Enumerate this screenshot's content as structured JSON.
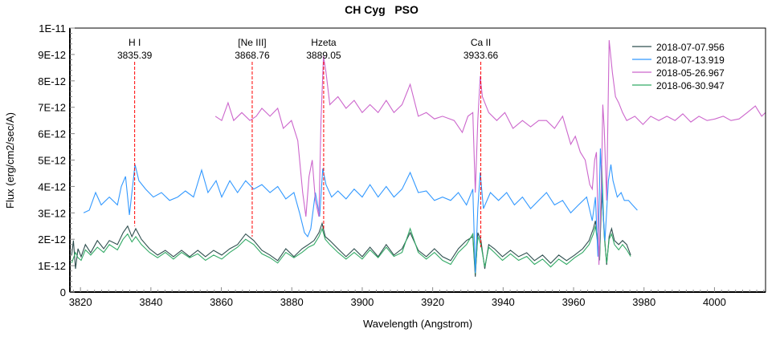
{
  "chart_data": {
    "type": "line",
    "title": "CH Cyg   PSO",
    "xlabel": "Wavelength (Angstrom)",
    "ylabel": "Flux (erg/cm2/sec/A)",
    "xlim": [
      3817,
      4014.5
    ],
    "ylim": [
      0,
      1e-11
    ],
    "y_unit_scale": 1e-12,
    "xticks": [
      3820,
      3840,
      3860,
      3880,
      3900,
      3920,
      3940,
      3960,
      3980,
      4000
    ],
    "yticks": [
      "0",
      "1E-12",
      "2E-12",
      "3E-12",
      "4E-12",
      "5E-12",
      "6E-12",
      "7E-12",
      "8E-12",
      "9E-12",
      "1E-11"
    ],
    "grid": false,
    "legend_position": "top-right",
    "spectral_lines": [
      {
        "name": "H I",
        "wavelength": "3835.39",
        "color": "#ff0000"
      },
      {
        "name": "[Ne III]",
        "wavelength": "3868.76",
        "color": "#ff0000"
      },
      {
        "name": "Hzeta",
        "wavelength": "3889.05",
        "color": "#ff0000"
      },
      {
        "name": "Ca II",
        "wavelength": "3933.66",
        "color": "#ff0000"
      }
    ],
    "series": [
      {
        "name": "2018-07-07.956",
        "color": "#2f4f4f",
        "x": [
          3817.5,
          3818,
          3818.6,
          3819.3,
          3820.2,
          3821.4,
          3822.9,
          3824.8,
          3826.6,
          3828.2,
          3830.5,
          3832.1,
          3833.4,
          3834.6,
          3835.7,
          3837.3,
          3839.6,
          3841.9,
          3844.1,
          3846.4,
          3848.7,
          3851,
          3853.3,
          3855.5,
          3857.8,
          3860.1,
          3862.4,
          3864.6,
          3866.9,
          3869.2,
          3871.5,
          3873.8,
          3876,
          3878.3,
          3880.6,
          3882.9,
          3884.7,
          3886.3,
          3887.7,
          3888.6,
          3889.5,
          3890.8,
          3893.1,
          3895.4,
          3897.7,
          3900,
          3902.2,
          3904.5,
          3906.8,
          3909,
          3911.3,
          3913.6,
          3915.9,
          3918.2,
          3920.5,
          3922.8,
          3925.1,
          3927.3,
          3929.6,
          3931.4,
          3932.1,
          3932.8,
          3933.7,
          3934.8,
          3935.9,
          3937.5,
          3939.8,
          3942.1,
          3944.4,
          3946.7,
          3948.9,
          3951.2,
          3953.5,
          3955.8,
          3958,
          3960.3,
          3962.6,
          3964.4,
          3965.6,
          3966.2,
          3966.9,
          3967.4,
          3968,
          3968.7,
          3969.4,
          3970.1,
          3970.8,
          3971.6,
          3972.8,
          3973.9,
          3975.1,
          3976.2
        ],
        "y": [
          1.4,
          1.95,
          0.88,
          1.64,
          1.34,
          1.8,
          1.49,
          1.95,
          1.64,
          1.95,
          1.8,
          2.25,
          2.5,
          2.1,
          2.4,
          2.0,
          1.64,
          1.4,
          1.58,
          1.34,
          1.58,
          1.34,
          1.58,
          1.34,
          1.58,
          1.4,
          1.64,
          1.8,
          2.2,
          1.95,
          1.58,
          1.4,
          1.19,
          1.64,
          1.34,
          1.64,
          1.8,
          1.95,
          2.25,
          2.6,
          2.1,
          1.95,
          1.64,
          1.34,
          1.64,
          1.34,
          1.7,
          1.34,
          1.8,
          1.4,
          1.64,
          2.25,
          1.58,
          1.34,
          1.64,
          1.34,
          1.19,
          1.64,
          1.95,
          2.1,
          0.58,
          2.25,
          1.95,
          0.88,
          1.8,
          1.64,
          1.34,
          1.58,
          1.34,
          1.49,
          1.19,
          1.4,
          1.09,
          1.4,
          1.19,
          1.4,
          1.64,
          1.95,
          2.4,
          2.7,
          1.95,
          1.34,
          3.77,
          2.25,
          1.03,
          2.1,
          2.4,
          1.95,
          1.8,
          1.95,
          1.8,
          1.4
        ]
      },
      {
        "name": "2018-07-13.919",
        "color": "#3399ff",
        "x": [
          3820.9,
          3822.5,
          3824.3,
          3825.9,
          3828.2,
          3830.5,
          3831.6,
          3832.8,
          3833.9,
          3834.6,
          3835.5,
          3836.6,
          3838.5,
          3840.7,
          3843,
          3845.3,
          3847.6,
          3849.8,
          3852.1,
          3854.4,
          3856.2,
          3858.5,
          3860.1,
          3862.4,
          3864.6,
          3866.9,
          3869.2,
          3871.5,
          3873.8,
          3876,
          3878.3,
          3880.6,
          3882.2,
          3883.6,
          3884.5,
          3885.4,
          3886.7,
          3887.9,
          3888.8,
          3889.7,
          3891.3,
          3893.1,
          3895.4,
          3897.7,
          3900,
          3902.2,
          3904.5,
          3906.8,
          3909,
          3911.3,
          3913.6,
          3915.9,
          3918.2,
          3920.5,
          3922.8,
          3925.1,
          3927.3,
          3929.6,
          3931.4,
          3932.1,
          3932.8,
          3933.5,
          3934.4,
          3936.4,
          3938.7,
          3941,
          3943.2,
          3945.5,
          3947.8,
          3950.1,
          3952.3,
          3954.6,
          3956.9,
          3959.2,
          3961.4,
          3963.7,
          3965.3,
          3966.2,
          3966.9,
          3967.6,
          3968.3,
          3968.9,
          3969.9,
          3970.6,
          3971.2,
          3972.4,
          3973.5,
          3974.4,
          3975.6,
          3976.7,
          3978.1
        ],
        "y": [
          3.0,
          3.1,
          3.77,
          3.3,
          3.6,
          3.3,
          4.0,
          4.38,
          2.92,
          3.77,
          4.83,
          4.22,
          3.9,
          3.6,
          3.77,
          3.47,
          3.6,
          3.83,
          3.6,
          4.62,
          3.77,
          4.22,
          3.6,
          4.22,
          3.77,
          4.22,
          3.9,
          4.07,
          3.77,
          4.0,
          3.53,
          3.77,
          3.0,
          2.25,
          2.1,
          2.4,
          3.77,
          2.86,
          4.68,
          4.07,
          3.6,
          3.83,
          3.53,
          3.9,
          3.6,
          4.07,
          3.6,
          4.0,
          3.6,
          3.9,
          4.53,
          3.77,
          3.83,
          3.47,
          3.6,
          3.47,
          3.77,
          3.3,
          3.9,
          0.73,
          3.16,
          4.53,
          3.16,
          3.77,
          3.47,
          3.77,
          3.3,
          3.6,
          3.16,
          3.47,
          3.77,
          3.3,
          3.47,
          3.0,
          3.3,
          3.6,
          2.7,
          3.6,
          1.34,
          5.44,
          3.16,
          1.95,
          4.22,
          4.83,
          4.22,
          3.6,
          3.77,
          3.47,
          3.47,
          3.3,
          3.1
        ]
      },
      {
        "name": "2018-05-26.967",
        "color": "#cc66cc",
        "x": [
          3858.3,
          3860.1,
          3861.9,
          3863.5,
          3865.8,
          3868.1,
          3869.9,
          3871.5,
          3873.8,
          3876,
          3877.6,
          3879.9,
          3881.7,
          3883.1,
          3884,
          3884.9,
          3885.8,
          3886.7,
          3887.7,
          3888.3,
          3889,
          3889.7,
          3890.8,
          3893.1,
          3895.4,
          3897.7,
          3900,
          3902.2,
          3904.5,
          3906.8,
          3909,
          3911.3,
          3913.6,
          3915.9,
          3918.2,
          3920.5,
          3922.8,
          3926.1,
          3928.4,
          3930,
          3931.4,
          3932.1,
          3932.8,
          3933.5,
          3934.1,
          3935.9,
          3938.2,
          3940.5,
          3942.8,
          3945.5,
          3947.8,
          3950.1,
          3952.3,
          3954.6,
          3956.9,
          3959.2,
          3960.5,
          3961.9,
          3963.3,
          3964.6,
          3965.3,
          3966,
          3966.5,
          3967.2,
          3967.9,
          3968.3,
          3968.7,
          3969.4,
          3970.1,
          3971,
          3971.9,
          3972.8,
          3973.9,
          3975.1,
          3977.4,
          3979.7,
          3981.9,
          3984.2,
          3986.5,
          3988.8,
          3991,
          3993.3,
          3995.6,
          3997.9,
          4000.2,
          4002.5,
          4004.7,
          4007,
          4009.3,
          4011.6,
          4013.4,
          4014.5
        ],
        "y": [
          6.66,
          6.5,
          7.17,
          6.5,
          6.8,
          6.5,
          6.66,
          6.96,
          6.66,
          6.96,
          6.2,
          6.5,
          5.74,
          3.77,
          2.86,
          4.38,
          5.0,
          3.47,
          2.86,
          6.5,
          8.94,
          8.33,
          7.1,
          7.4,
          6.96,
          7.26,
          6.8,
          7.1,
          6.8,
          7.26,
          6.8,
          7.1,
          7.87,
          6.66,
          6.8,
          6.56,
          6.66,
          6.5,
          6.05,
          6.66,
          6.8,
          3.77,
          6.5,
          8.18,
          7.4,
          6.8,
          6.5,
          6.8,
          6.2,
          6.5,
          6.26,
          6.5,
          6.5,
          6.2,
          6.66,
          5.6,
          5.9,
          5.3,
          5.0,
          4.07,
          3.9,
          5.0,
          5.3,
          1.03,
          4.07,
          7.1,
          6.2,
          3.47,
          9.54,
          8.33,
          7.4,
          7.17,
          6.8,
          6.5,
          6.66,
          6.35,
          6.66,
          6.5,
          6.66,
          6.5,
          6.75,
          6.44,
          6.66,
          6.5,
          6.56,
          6.66,
          6.5,
          6.56,
          6.8,
          7.05,
          6.66,
          6.8
        ]
      },
      {
        "name": "2018-06-30.947",
        "color": "#33aa66",
        "x": [
          3817.5,
          3818.6,
          3819.3,
          3820.2,
          3821.4,
          3822.9,
          3824.8,
          3826.6,
          3828.2,
          3830.5,
          3832.1,
          3833.4,
          3834.6,
          3835.7,
          3837.3,
          3839.6,
          3841.9,
          3844.1,
          3846.4,
          3848.7,
          3851,
          3853.3,
          3855.5,
          3857.8,
          3860.1,
          3862.4,
          3864.6,
          3866.9,
          3869.2,
          3871.5,
          3873.8,
          3876,
          3878.3,
          3880.6,
          3882.9,
          3884.7,
          3886.3,
          3887.7,
          3888.6,
          3889.5,
          3890.8,
          3893.1,
          3895.4,
          3897.7,
          3900,
          3902.2,
          3904.5,
          3906.8,
          3909,
          3911.3,
          3913.6,
          3915.9,
          3918.2,
          3920.5,
          3922.8,
          3925.1,
          3927.3,
          3929.6,
          3931.4,
          3932.1,
          3932.8,
          3933.7,
          3934.8,
          3935.9,
          3937.5,
          3939.8,
          3942.1,
          3944.4,
          3946.7,
          3948.9,
          3951.2,
          3953.5,
          3955.8,
          3958,
          3960.3,
          3962.6,
          3964.4,
          3965.6,
          3966.2,
          3966.9,
          3967.4,
          3968,
          3968.7,
          3969.4,
          3970.1,
          3970.8,
          3971.6,
          3972.8,
          3973.9,
          3975.1,
          3976.2
        ],
        "y": [
          1.1,
          1.5,
          1.3,
          1.2,
          1.6,
          1.4,
          1.7,
          1.5,
          1.8,
          1.6,
          2.0,
          2.2,
          1.9,
          2.1,
          1.8,
          1.5,
          1.3,
          1.5,
          1.25,
          1.5,
          1.3,
          1.45,
          1.2,
          1.4,
          1.25,
          1.5,
          1.7,
          2.0,
          1.8,
          1.45,
          1.3,
          1.1,
          1.5,
          1.3,
          1.5,
          1.7,
          1.8,
          2.1,
          2.4,
          2.0,
          1.8,
          1.5,
          1.25,
          1.5,
          1.25,
          1.6,
          1.3,
          1.7,
          1.35,
          1.5,
          2.4,
          1.5,
          1.25,
          1.5,
          1.2,
          1.05,
          1.5,
          1.8,
          2.2,
          0.7,
          2.1,
          1.8,
          0.95,
          1.7,
          1.5,
          1.2,
          1.45,
          1.2,
          1.35,
          1.05,
          1.25,
          0.95,
          1.25,
          1.05,
          1.3,
          1.5,
          1.8,
          2.2,
          2.5,
          1.8,
          1.2,
          4.8,
          2.1,
          1.1,
          2.0,
          2.2,
          1.8,
          1.6,
          1.8,
          1.6,
          1.35
        ]
      }
    ]
  }
}
